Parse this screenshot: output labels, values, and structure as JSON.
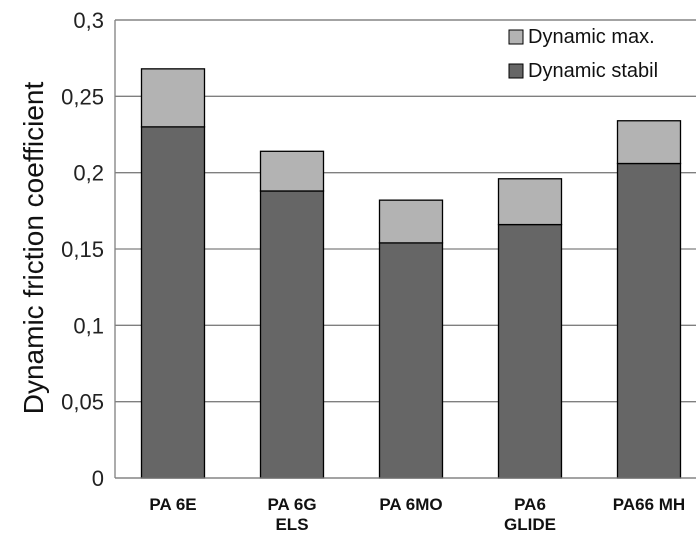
{
  "chart_data": {
    "type": "bar",
    "stacked": true,
    "categories": [
      [
        "PA 6E"
      ],
      [
        "PA 6G",
        "ELS"
      ],
      [
        "PA 6MO"
      ],
      [
        "PA6",
        "GLIDE"
      ],
      [
        "PA66 MH"
      ]
    ],
    "series": [
      {
        "name": "Dynamic stabil",
        "values": [
          0.23,
          0.188,
          0.154,
          0.166,
          0.206
        ],
        "color": "#666666"
      },
      {
        "name": "Dynamic max.",
        "values": [
          0.038,
          0.026,
          0.028,
          0.03,
          0.028
        ],
        "color": "#B3B3B3"
      }
    ],
    "legend": [
      "Dynamic max.",
      "Dynamic stabil"
    ],
    "ylabel": "Dynamic friction coefficient",
    "ylim": [
      0,
      0.3
    ],
    "yticks": [
      "0",
      "0,05",
      "0,1",
      "0,15",
      "0,2",
      "0,25",
      "0,3"
    ],
    "grid": true,
    "legend_position": "top-right"
  },
  "colors": {
    "plot_border": "#7F7F7F",
    "grid": "#7F7F7F",
    "bar_stroke": "#000000"
  }
}
